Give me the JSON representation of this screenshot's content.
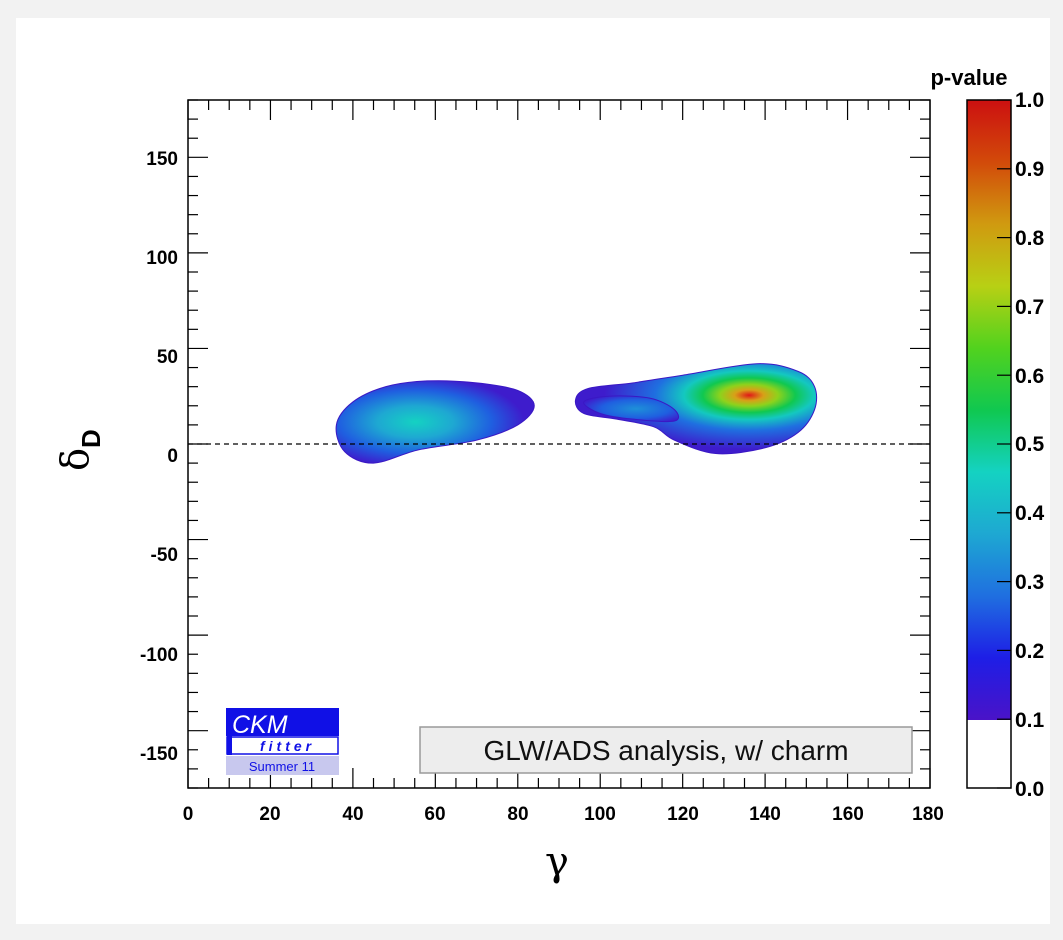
{
  "chart_data": {
    "type": "heatmap",
    "title": "",
    "xlabel": "γ",
    "ylabel_main": "δ",
    "ylabel_sub": "D",
    "xlim": [
      0,
      180
    ],
    "ylim": [
      -180,
      180
    ],
    "x_ticks": [
      "0",
      "20",
      "40",
      "60",
      "80",
      "100",
      "120",
      "140",
      "160",
      "180"
    ],
    "y_ticks": [
      "-150",
      "-100",
      "-50",
      "0",
      "50",
      "100",
      "150"
    ],
    "colorbar": {
      "title": "p-value",
      "range": [
        0,
        1
      ],
      "ticks": [
        "0.0",
        "0.1",
        "0.2",
        "0.3",
        "0.4",
        "0.5",
        "0.6",
        "0.7",
        "0.8",
        "0.9",
        "1.0"
      ],
      "colors": [
        "#ffffff",
        "#4a13c8",
        "#1e1ee6",
        "#1f6fe0",
        "#1ea8d2",
        "#14d2c2",
        "#10c850",
        "#52d21e",
        "#b8d014",
        "#d09a10",
        "#d24a0a",
        "#cc1010"
      ]
    },
    "reference_line": {
      "axis": "y",
      "value": 0,
      "style": "dashed"
    },
    "regions": [
      {
        "outline": [
          [
            38,
            -4
          ],
          [
            36,
            10
          ],
          [
            40,
            22
          ],
          [
            48,
            30
          ],
          [
            58,
            33
          ],
          [
            70,
            32
          ],
          [
            80,
            28
          ],
          [
            84,
            20
          ],
          [
            80,
            10
          ],
          [
            70,
            2
          ],
          [
            56,
            -3
          ],
          [
            45,
            -10
          ],
          [
            38,
            -4
          ]
        ],
        "peak": {
          "x": 55,
          "y": 16,
          "p": 0.38
        }
      },
      {
        "outline": [
          [
            94,
            23
          ],
          [
            96,
            16
          ],
          [
            104,
            13
          ],
          [
            113,
            9
          ],
          [
            118,
            2
          ],
          [
            128,
            -5
          ],
          [
            140,
            -2
          ],
          [
            148,
            6
          ],
          [
            152,
            18
          ],
          [
            152,
            30
          ],
          [
            148,
            38
          ],
          [
            138,
            42
          ],
          [
            120,
            36
          ],
          [
            108,
            32
          ],
          [
            97,
            29
          ],
          [
            94,
            23
          ]
        ],
        "peak": {
          "x": 136,
          "y": 23,
          "p": 1.0
        }
      },
      {
        "outline": [
          [
            96,
            22
          ],
          [
            102,
            25
          ],
          [
            112,
            24
          ],
          [
            118,
            18
          ],
          [
            118,
            12
          ],
          [
            108,
            13
          ],
          [
            100,
            16
          ],
          [
            96,
            22
          ]
        ],
        "peak": {
          "x": 108,
          "y": 19,
          "p": 0.28
        }
      }
    ]
  },
  "annotation": "GLW/ADS analysis, w/ charm",
  "logo": {
    "line1": "CKM",
    "line2": "fitter",
    "line3": "Summer 11"
  }
}
